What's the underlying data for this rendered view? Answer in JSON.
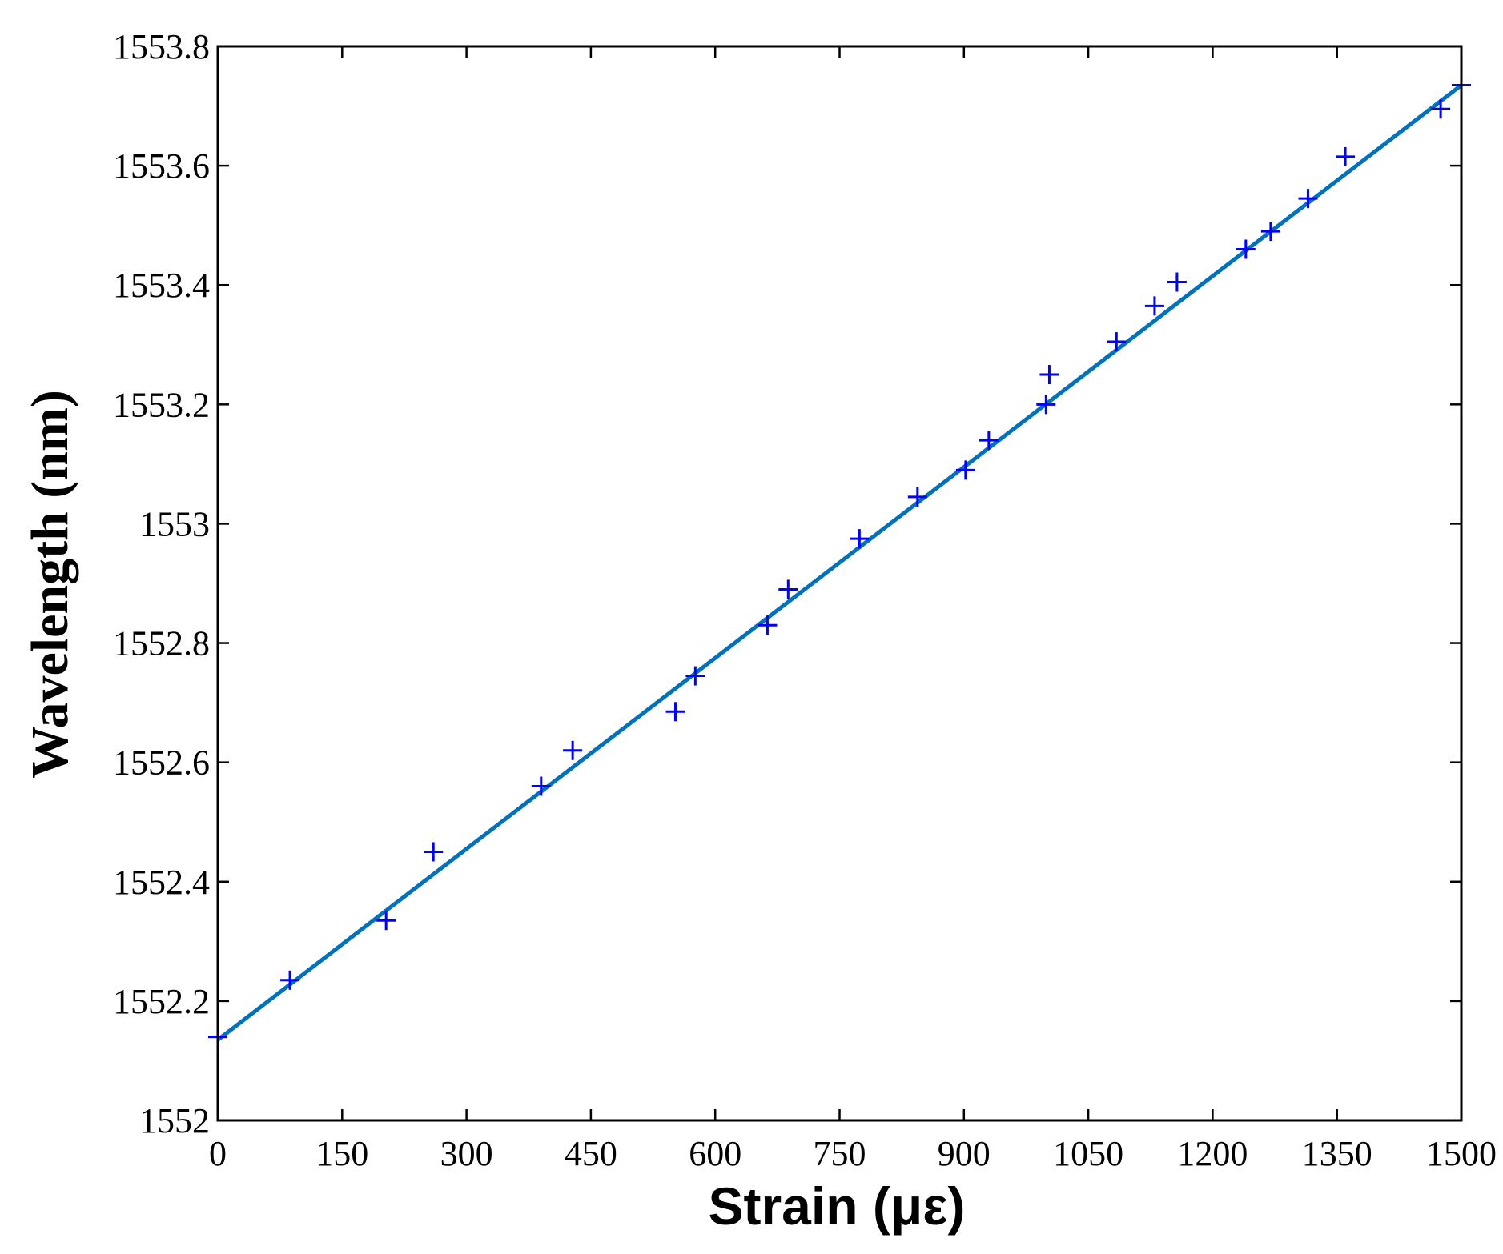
{
  "chart_data": {
    "type": "scatter",
    "title": "",
    "xlabel": "Strain (με)",
    "ylabel": "Wavelength (nm)",
    "xlim": [
      0,
      1500
    ],
    "ylim": [
      1552,
      1553.8
    ],
    "xticks": [
      0,
      150,
      300,
      450,
      600,
      750,
      900,
      1050,
      1200,
      1350,
      1500
    ],
    "yticks": [
      1552,
      1552.2,
      1552.4,
      1552.6,
      1552.8,
      1553,
      1553.2,
      1553.4,
      1553.6,
      1553.8
    ],
    "ytick_labels": [
      "1552",
      "1552.2",
      "1552.4",
      "1552.6",
      "1552.8",
      "1553",
      "1553.2",
      "1553.4",
      "1553.6",
      "1553.8"
    ],
    "grid": false,
    "series": [
      {
        "type": "scatter",
        "marker": "+",
        "color": "#0000ff",
        "x": [
          0,
          87,
          203,
          260,
          390,
          428,
          552,
          576,
          663,
          688,
          774,
          844,
          902,
          930,
          999,
          1003,
          1084,
          1130,
          1157,
          1240,
          1270,
          1315,
          1360,
          1475,
          1500
        ],
        "y": [
          1552.14,
          1552.235,
          1552.335,
          1552.45,
          1552.56,
          1552.62,
          1552.685,
          1552.745,
          1552.83,
          1552.89,
          1552.975,
          1553.045,
          1553.09,
          1553.14,
          1553.2,
          1553.25,
          1553.305,
          1553.365,
          1553.405,
          1553.46,
          1553.49,
          1553.545,
          1553.615,
          1553.695,
          1553.735
        ]
      },
      {
        "type": "line",
        "color": "#0072bd",
        "x": [
          0,
          1500
        ],
        "y": [
          1552.135,
          1553.735
        ]
      }
    ]
  }
}
